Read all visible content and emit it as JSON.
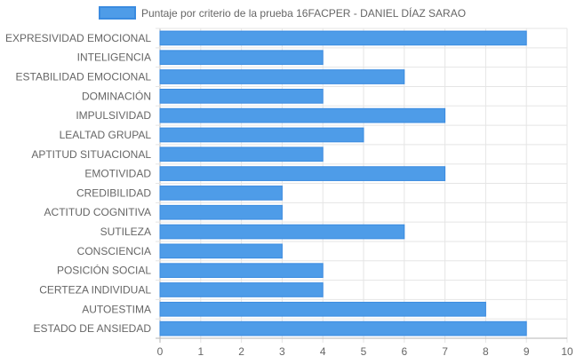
{
  "chart_data": {
    "type": "bar",
    "orientation": "horizontal",
    "categories": [
      "EXPRESIVIDAD EMOCIONAL",
      "INTELIGENCIA",
      "ESTABILIDAD EMOCIONAL",
      "DOMINACIÓN",
      "IMPULSIVIDAD",
      "LEALTAD GRUPAL",
      "APTITUD SITUACIONAL",
      "EMOTIVIDAD",
      "CREDIBILIDAD",
      "ACTITUD COGNITIVA",
      "SUTILEZA",
      "CONSCIENCIA",
      "POSICIÓN SOCIAL",
      "CERTEZA INDIVIDUAL",
      "AUTOESTIMA",
      "ESTADO DE ANSIEDAD"
    ],
    "series": [
      {
        "name": "Puntaje por criterio de la prueba 16FACPER - DANIEL DÍAZ SARAO",
        "values": [
          9,
          4,
          6,
          4,
          7,
          5,
          4,
          7,
          3,
          3,
          6,
          3,
          4,
          4,
          8,
          9
        ]
      }
    ],
    "xlim": [
      0,
      10
    ],
    "xticks": [
      0,
      1,
      2,
      3,
      4,
      5,
      6,
      7,
      8,
      9,
      10
    ],
    "grid": true,
    "legend_position": "top",
    "colors": {
      "bar_fill": "#4e9ce8",
      "bar_border": "#3a8be0",
      "grid": "#e5e5e5",
      "axis": "#b5b5b5",
      "text": "#666666"
    }
  }
}
